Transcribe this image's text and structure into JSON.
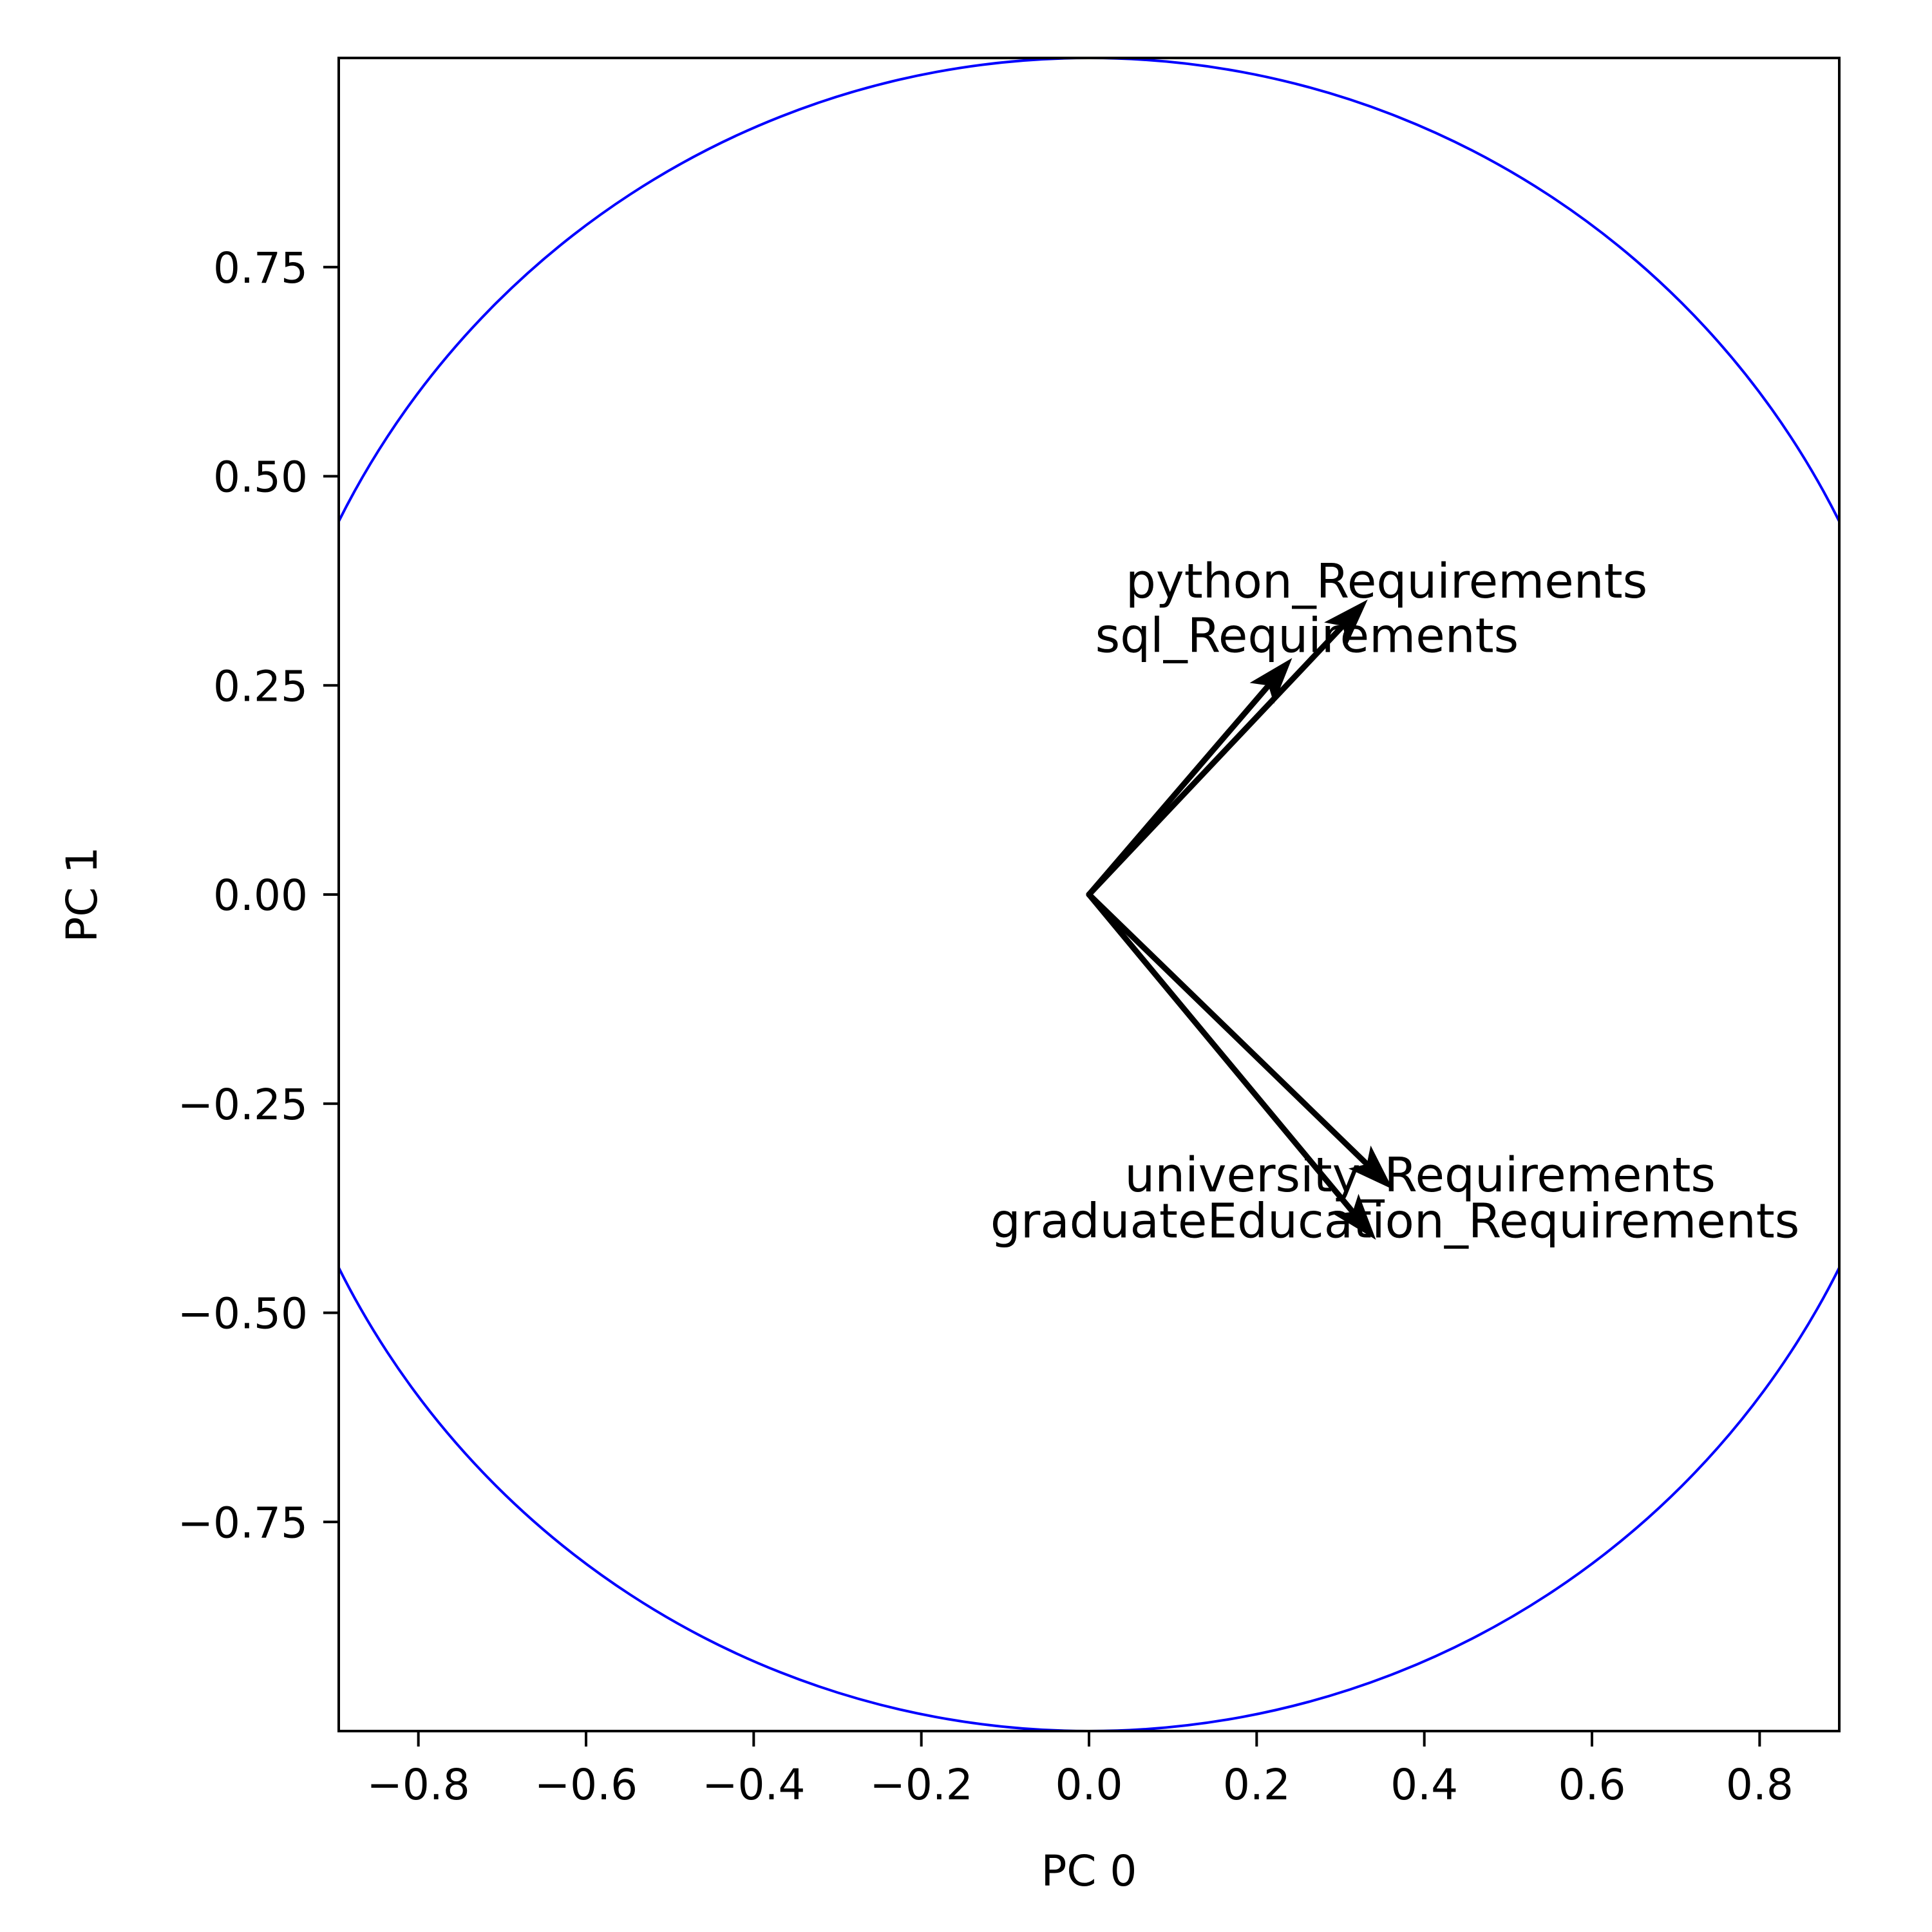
{
  "chart_data": {
    "type": "biplot",
    "xlabel": "PC 0",
    "ylabel": "PC 1",
    "xlim": [
      -0.895,
      0.895
    ],
    "ylim": [
      -1.0,
      1.0
    ],
    "x_ticks": [
      -0.8,
      -0.6,
      -0.4,
      -0.2,
      0.0,
      0.2,
      0.4,
      0.6,
      0.8
    ],
    "x_tick_labels": [
      "−0.8",
      "−0.6",
      "−0.4",
      "−0.2",
      "0.0",
      "0.2",
      "0.4",
      "0.6",
      "0.8"
    ],
    "y_ticks": [
      0.75,
      0.5,
      0.25,
      0.0,
      -0.25,
      -0.5,
      -0.75
    ],
    "y_tick_labels": [
      "0.75",
      "0.50",
      "0.25",
      "0.00",
      "−0.25",
      "−0.50",
      "−0.75"
    ],
    "circle": {
      "center": [
        0,
        0
      ],
      "radius": 1.0,
      "color": "#0000ff"
    },
    "arrow_color": "#000000",
    "vectors": [
      {
        "label": "python_Requirements",
        "x": 0.33,
        "y": 0.35,
        "label_x": 0.355,
        "label_y": 0.375
      },
      {
        "label": "sql_Requirements",
        "x": 0.24,
        "y": 0.28,
        "label_x": 0.26,
        "label_y": 0.31
      },
      {
        "label": "university_Requirements",
        "x": 0.36,
        "y": -0.35,
        "label_x": 0.395,
        "label_y": -0.335
      },
      {
        "label": "graduateEducation_Requirements",
        "x": 0.34,
        "y": -0.41,
        "label_x": 0.365,
        "label_y": -0.39
      }
    ]
  }
}
